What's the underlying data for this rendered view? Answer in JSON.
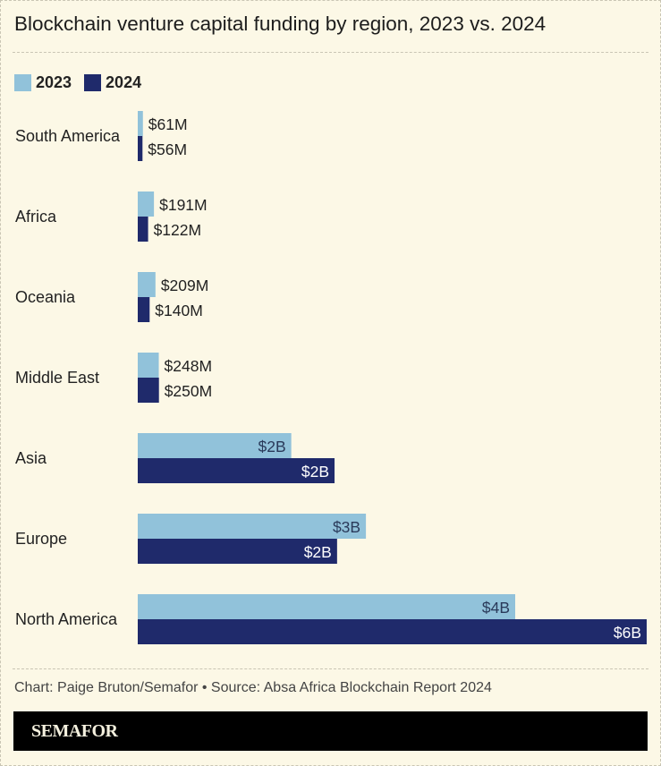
{
  "title": "Blockchain venture capital funding by region, 2023 vs. 2024",
  "credit": "Chart: Paige Bruton/Semafor • Source: Absa Africa Blockchain Report 2024",
  "brand": "SEMAFOR",
  "colors": {
    "background": "#fcf8e6",
    "series_2023": "#91c2da",
    "series_2024": "#1f2a6b"
  },
  "chart_data": {
    "type": "bar",
    "orientation": "horizontal",
    "title": "Blockchain venture capital funding by region, 2023 vs. 2024",
    "unit": "USD billions",
    "categories": [
      "South America",
      "Africa",
      "Oceania",
      "Middle East",
      "Asia",
      "Europe",
      "North America"
    ],
    "series": [
      {
        "name": "2023",
        "values": [
          0.061,
          0.191,
          0.209,
          0.248,
          1.81,
          2.69,
          4.45
        ],
        "labels": [
          "$61M",
          "$191M",
          "$209M",
          "$248M",
          "$2B",
          "$3B",
          "$4B"
        ]
      },
      {
        "name": "2024",
        "values": [
          0.056,
          0.122,
          0.14,
          0.25,
          2.32,
          2.35,
          6.0
        ],
        "labels": [
          "$56M",
          "$122M",
          "$140M",
          "$250M",
          "$2B",
          "$2B",
          "$6B"
        ]
      }
    ],
    "xlim": [
      0,
      6.0
    ],
    "grid": false,
    "legend_placement": "top-left"
  }
}
